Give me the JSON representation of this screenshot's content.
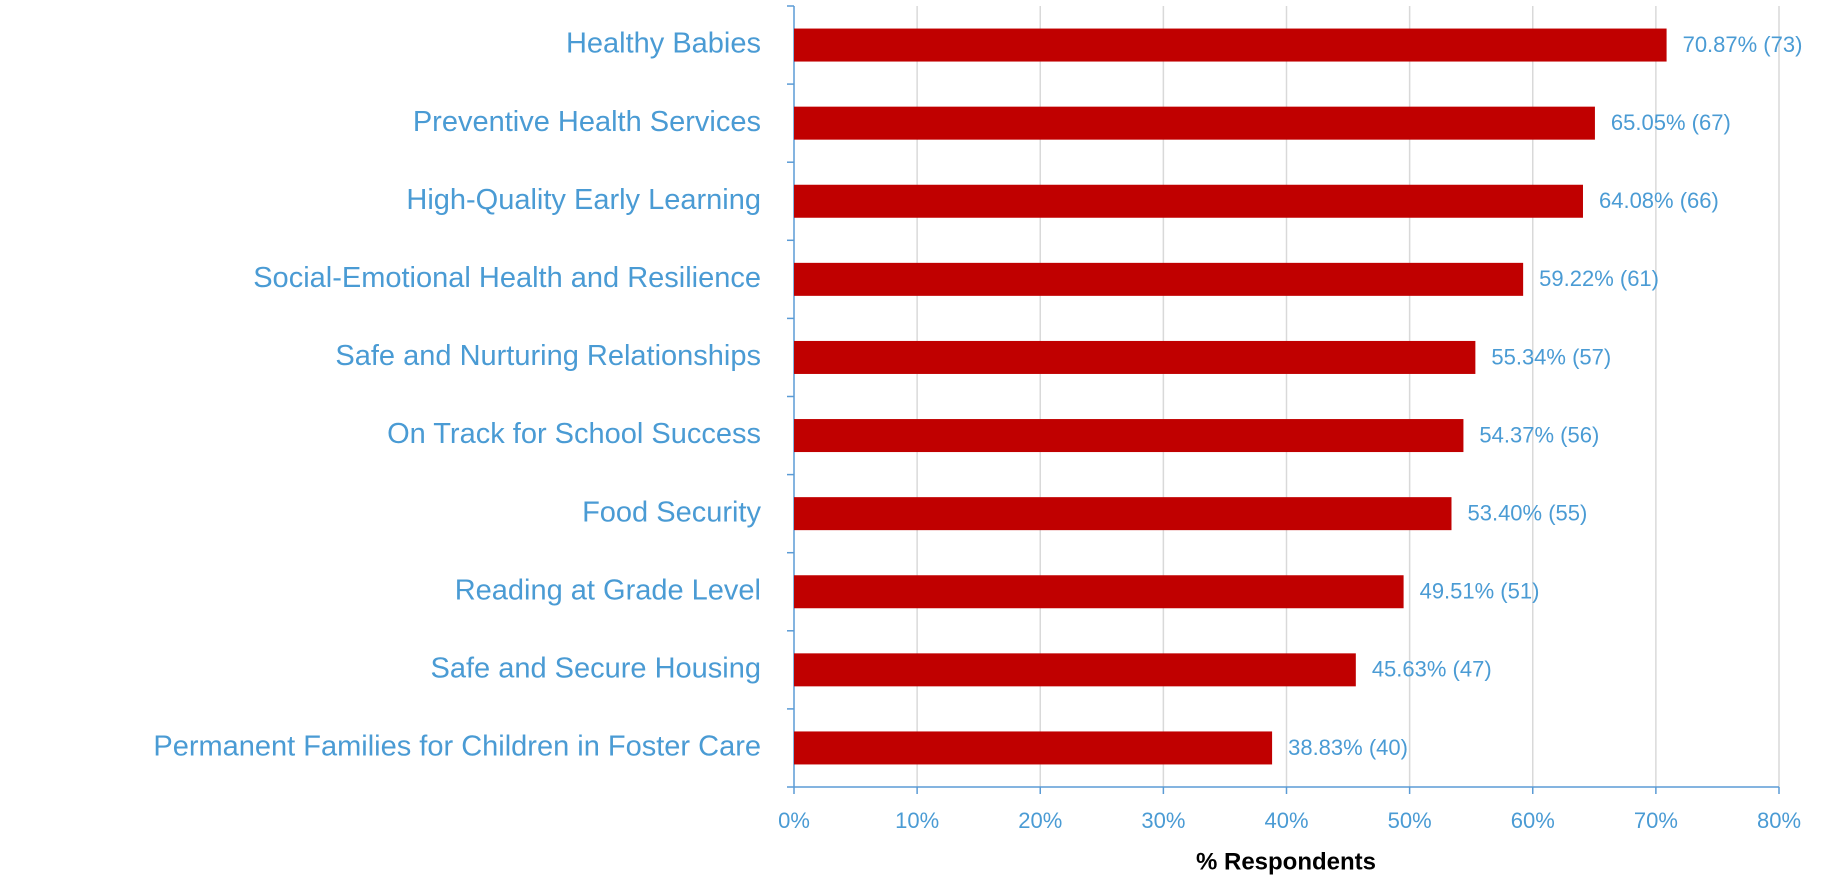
{
  "chart_data": {
    "type": "bar",
    "orientation": "horizontal",
    "categories": [
      "Healthy Babies",
      "Preventive Health Services",
      "High-Quality Early Learning",
      "Social-Emotional Health and Resilience",
      "Safe and Nurturing Relationships",
      "On Track for School Success",
      "Food Security",
      "Reading at Grade Level",
      "Safe and Secure Housing",
      "Permanent Families for Children in Foster Care"
    ],
    "values": [
      70.87,
      65.05,
      64.08,
      59.22,
      55.34,
      54.37,
      53.4,
      49.51,
      45.63,
      38.83
    ],
    "value_labels": [
      "70.87% (73)",
      "65.05% (67)",
      "64.08% (66)",
      "59.22% (61)",
      "55.34% (57)",
      "54.37% (56)",
      "53.40% (55)",
      "49.51% (51)",
      "45.63% (47)",
      "38.83% (40)"
    ],
    "color": "#c00000",
    "x_label": "% Respondents",
    "xlim": [
      0,
      80
    ],
    "xticks": [
      {
        "value": 0,
        "label": "0%"
      },
      {
        "value": 10,
        "label": "10%"
      },
      {
        "value": 20,
        "label": "20%"
      },
      {
        "value": 30,
        "label": "30%"
      },
      {
        "value": 40,
        "label": "40%"
      },
      {
        "value": 50,
        "label": "50%"
      },
      {
        "value": 60,
        "label": "60%"
      },
      {
        "value": 70,
        "label": "70%"
      },
      {
        "value": 80,
        "label": "80%"
      }
    ],
    "grid": true
  }
}
